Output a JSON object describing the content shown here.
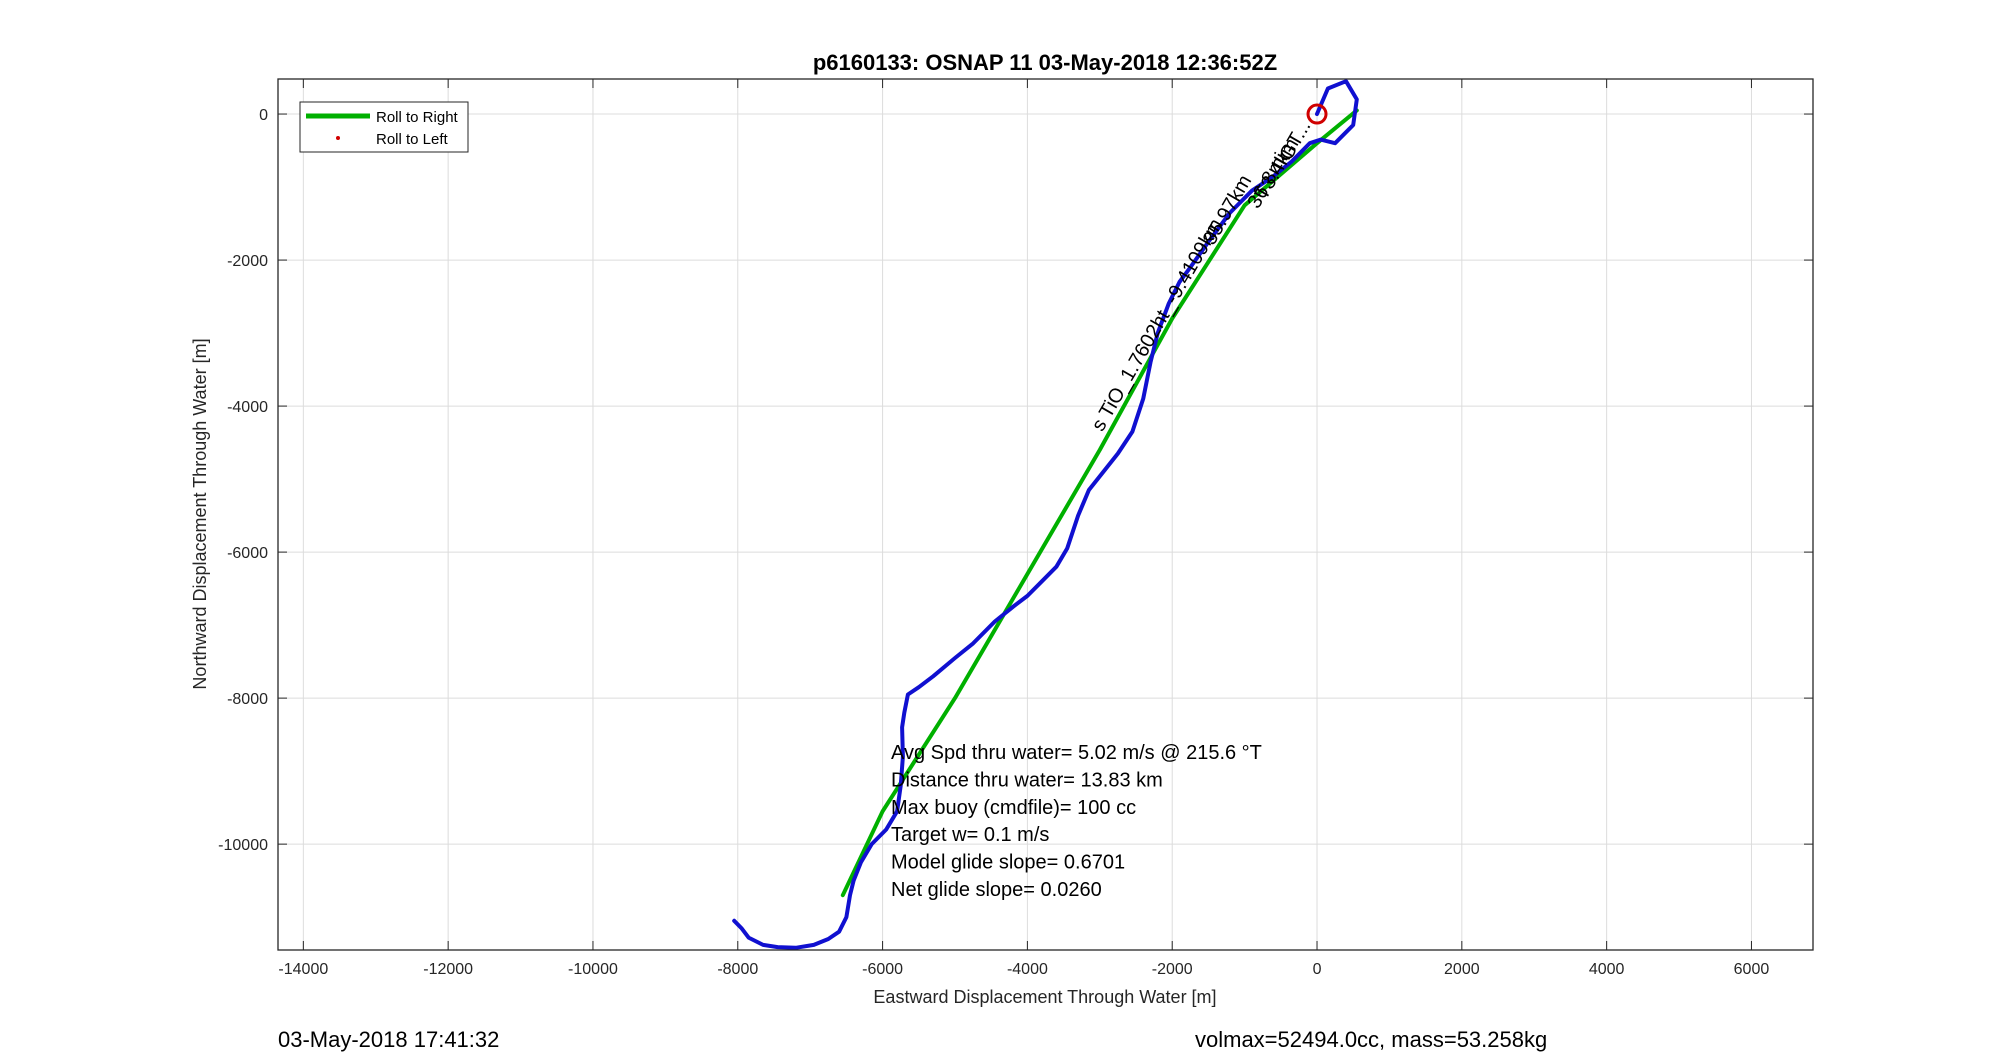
{
  "chart_data": {
    "type": "line",
    "title": "p6160133: OSNAP 11 03-May-2018 12:36:52Z",
    "xlabel": "Eastward Displacement Through Water [m]",
    "ylabel": "Northward Displacement Through Water [m]",
    "xlim": [
      -14350,
      6850
    ],
    "ylim": [
      -11450,
      480
    ],
    "xticks": [
      -14000,
      -12000,
      -10000,
      -8000,
      -6000,
      -4000,
      -2000,
      0,
      2000,
      4000,
      6000
    ],
    "yticks": [
      0,
      -2000,
      -4000,
      -6000,
      -8000,
      -10000
    ],
    "grid": true,
    "legend_position": "top-left",
    "legend": [
      {
        "label": "Roll to Right",
        "color": "#00b000",
        "style": "line"
      },
      {
        "label": "Roll to Left",
        "color": "#d00000",
        "style": "dot"
      }
    ],
    "series": [
      {
        "name": "Roll to Right",
        "color": "#00b000",
        "x": [
          550,
          0,
          -1000,
          -2000,
          -3000,
          -4000,
          -5000,
          -6000,
          -6550
        ],
        "y": [
          50,
          -400,
          -1250,
          -2800,
          -4600,
          -6300,
          -8000,
          -9550,
          -10700
        ]
      },
      {
        "color": "#1010d0",
        "x": [
          0,
          150,
          400,
          550,
          500,
          250,
          50,
          -100,
          -350,
          -600,
          -900,
          -1200,
          -1500,
          -1750,
          -1900,
          -2050,
          -2200,
          -2300,
          -2400,
          -2550,
          -2750,
          -2950,
          -3150,
          -3300,
          -3450,
          -3600,
          -3800,
          -4000,
          -4200,
          -4450,
          -4750,
          -5000,
          -5300,
          -5500,
          -5650,
          -5700,
          -5730,
          -5720,
          -5750,
          -5800,
          -5950,
          -6150,
          -6300,
          -6400,
          -6450,
          -6500,
          -6600,
          -6750,
          -6950,
          -7200,
          -7450,
          -7650,
          -7850,
          -7950,
          -8050
        ],
        "y": [
          0,
          350,
          450,
          200,
          -150,
          -400,
          -350,
          -400,
          -650,
          -850,
          -1050,
          -1350,
          -1750,
          -2100,
          -2300,
          -2600,
          -3000,
          -3400,
          -3900,
          -4350,
          -4650,
          -4900,
          -5150,
          -5500,
          -5950,
          -6200,
          -6400,
          -6600,
          -6750,
          -6950,
          -7250,
          -7450,
          -7700,
          -7850,
          -7950,
          -8200,
          -8400,
          -8800,
          -9200,
          -9550,
          -9800,
          -10000,
          -10250,
          -10500,
          -10700,
          -11000,
          -11200,
          -11300,
          -11380,
          -11420,
          -11410,
          -11380,
          -11280,
          -11150,
          -11050
        ]
      }
    ],
    "marker": {
      "type": "circle",
      "color": "#d00000",
      "x": 0,
      "y": 0
    },
    "rotated_annotations": [
      {
        "text": "GT...",
        "x": -80,
        "y": -150
      },
      {
        "text": "T3.4km",
        "x": -250,
        "y": -400
      },
      {
        "text": "36.8mi",
        "x": -400,
        "y": -600
      },
      {
        "text": "35.97km",
        "x": -900,
        "y": -900
      },
      {
        "text": "s TiO_1.7602ht_-9.4109km",
        "x": -1300,
        "y": -1500
      }
    ],
    "stats": [
      "Avg Spd thru water=  5.02 m/s @ 215.6 °T",
      "Distance thru water= 13.83 km",
      "Max buoy (cmdfile)= 100 cc",
      "Target w= 0.1 m/s",
      "Model glide slope= 0.6701",
      "Net glide slope= 0.0260"
    ]
  },
  "footer": {
    "left": "03-May-2018 17:41:32",
    "right": "volmax=52494.0cc, mass=53.258kg"
  }
}
